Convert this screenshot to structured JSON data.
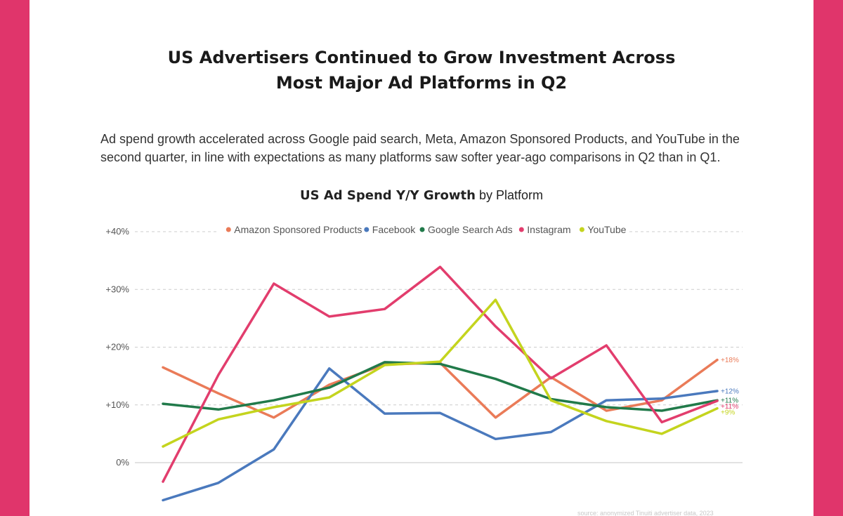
{
  "header": {
    "title_line1": "US Advertisers Continued to Grow Investment Across",
    "title_line2": "Most Major Ad Platforms in Q2",
    "description": "Ad spend growth accelerated across Google paid search, Meta, Amazon Sponsored Products, and YouTube in the second quarter, in line with expectations as many platforms saw softer year-ago comparisons in Q2 than in Q1."
  },
  "chart_title_bold": "US Ad Spend Y/Y Growth",
  "chart_title_rest": "by Platform",
  "source_note": "source: anonymized Tinuiti advertiser data, 2023",
  "colors": {
    "background": "#e0356b",
    "grid": "#cccccc",
    "zero_line": "#d9d9d9"
  },
  "chart_data": {
    "type": "line",
    "title": "US Ad Spend Y/Y Growth by Platform",
    "xlabel": "",
    "ylabel": "",
    "ylim": [
      -7,
      41
    ],
    "yticks": [
      0,
      10,
      20,
      30,
      40
    ],
    "ytick_labels": [
      "0%",
      "+10%",
      "+20%",
      "+30%",
      "+40%"
    ],
    "grid": true,
    "legend_position": "top",
    "x": [
      1,
      2,
      3,
      4,
      5,
      6,
      7,
      8,
      9,
      10,
      11
    ],
    "series": [
      {
        "name": "Amazon Sponsored Products",
        "color": "#ea7b58",
        "values": [
          16.5,
          12,
          7.8,
          13.5,
          17,
          17.3,
          7.8,
          14.8,
          9,
          10.8,
          17.8
        ],
        "end_label": "+18%"
      },
      {
        "name": "Facebook",
        "color": "#4a79bd",
        "values": [
          -6.5,
          -3.5,
          2.3,
          16.3,
          8.5,
          8.6,
          4.1,
          5.3,
          10.8,
          11.1,
          12.4
        ],
        "end_label": "+12%"
      },
      {
        "name": "Google Search Ads",
        "color": "#217a4a",
        "values": [
          10.2,
          9.2,
          10.8,
          13,
          17.4,
          17.1,
          14.5,
          11,
          9.6,
          9,
          10.8
        ],
        "end_label": "+11%"
      },
      {
        "name": "Instagram",
        "color": "#e23d6d",
        "values": [
          -3.3,
          15.2,
          31,
          25.3,
          26.6,
          33.9,
          23.6,
          14.6,
          20.3,
          7,
          10.7
        ],
        "end_label": "+11%"
      },
      {
        "name": "YouTube",
        "color": "#c4d41e",
        "values": [
          2.8,
          7.5,
          9.6,
          11.3,
          16.9,
          17.5,
          28.2,
          10.8,
          7.2,
          5,
          9.4
        ],
        "end_label": "+9%"
      }
    ]
  }
}
